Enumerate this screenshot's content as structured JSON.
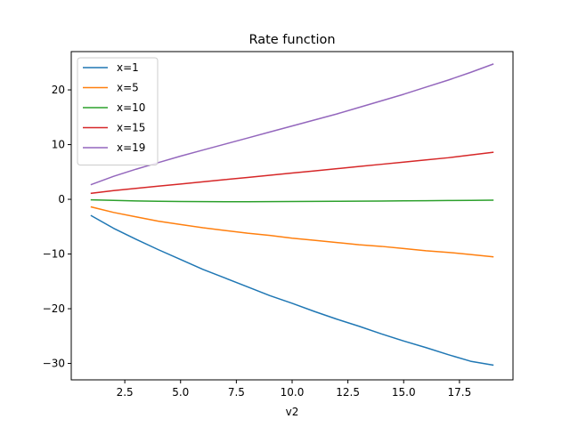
{
  "chart_data": {
    "type": "line",
    "title": "Rate function",
    "xlabel": "v2",
    "ylabel": "",
    "xlim": [
      0.1,
      19.9
    ],
    "ylim": [
      -33,
      27
    ],
    "xticks": [
      2.5,
      5.0,
      7.5,
      10.0,
      12.5,
      15.0,
      17.5
    ],
    "xtick_labels": [
      "2.5",
      "5.0",
      "7.5",
      "10.0",
      "12.5",
      "15.0",
      "17.5"
    ],
    "yticks": [
      -30,
      -20,
      -10,
      0,
      10,
      20
    ],
    "ytick_labels": [
      "−30",
      "−20",
      "−10",
      "0",
      "10",
      "20"
    ],
    "grid": false,
    "legend_position": "top-left",
    "x": [
      1,
      2,
      3,
      4,
      5,
      6,
      7,
      8,
      9,
      10,
      11,
      12,
      13,
      14,
      15,
      16,
      17,
      18,
      19
    ],
    "series": [
      {
        "name": "x=1",
        "color": "#1f77b4",
        "values": [
          -3.0,
          -5.3,
          -7.3,
          -9.2,
          -11.0,
          -12.8,
          -14.4,
          -16.0,
          -17.6,
          -19.0,
          -20.5,
          -21.9,
          -23.2,
          -24.6,
          -25.9,
          -27.1,
          -28.4,
          -29.6,
          -30.3
        ]
      },
      {
        "name": "x=5",
        "color": "#ff7f0e",
        "values": [
          -1.4,
          -2.4,
          -3.2,
          -4.0,
          -4.6,
          -5.2,
          -5.7,
          -6.2,
          -6.6,
          -7.1,
          -7.5,
          -7.9,
          -8.3,
          -8.6,
          -9.0,
          -9.4,
          -9.7,
          -10.1,
          -10.5
        ]
      },
      {
        "name": "x=10",
        "color": "#2ca02c",
        "values": [
          -0.1,
          -0.2,
          -0.3,
          -0.35,
          -0.4,
          -0.42,
          -0.43,
          -0.43,
          -0.42,
          -0.4,
          -0.38,
          -0.36,
          -0.34,
          -0.31,
          -0.28,
          -0.25,
          -0.22,
          -0.19,
          -0.15
        ]
      },
      {
        "name": "x=15",
        "color": "#d62728",
        "values": [
          1.1,
          1.6,
          2.0,
          2.4,
          2.8,
          3.2,
          3.6,
          4.0,
          4.4,
          4.8,
          5.2,
          5.6,
          6.0,
          6.4,
          6.8,
          7.2,
          7.6,
          8.1,
          8.6
        ]
      },
      {
        "name": "x=19",
        "color": "#9467bd",
        "values": [
          2.7,
          4.2,
          5.5,
          6.7,
          7.9,
          9.0,
          10.1,
          11.2,
          12.3,
          13.4,
          14.5,
          15.6,
          16.8,
          18.0,
          19.2,
          20.5,
          21.8,
          23.2,
          24.7
        ]
      }
    ]
  }
}
